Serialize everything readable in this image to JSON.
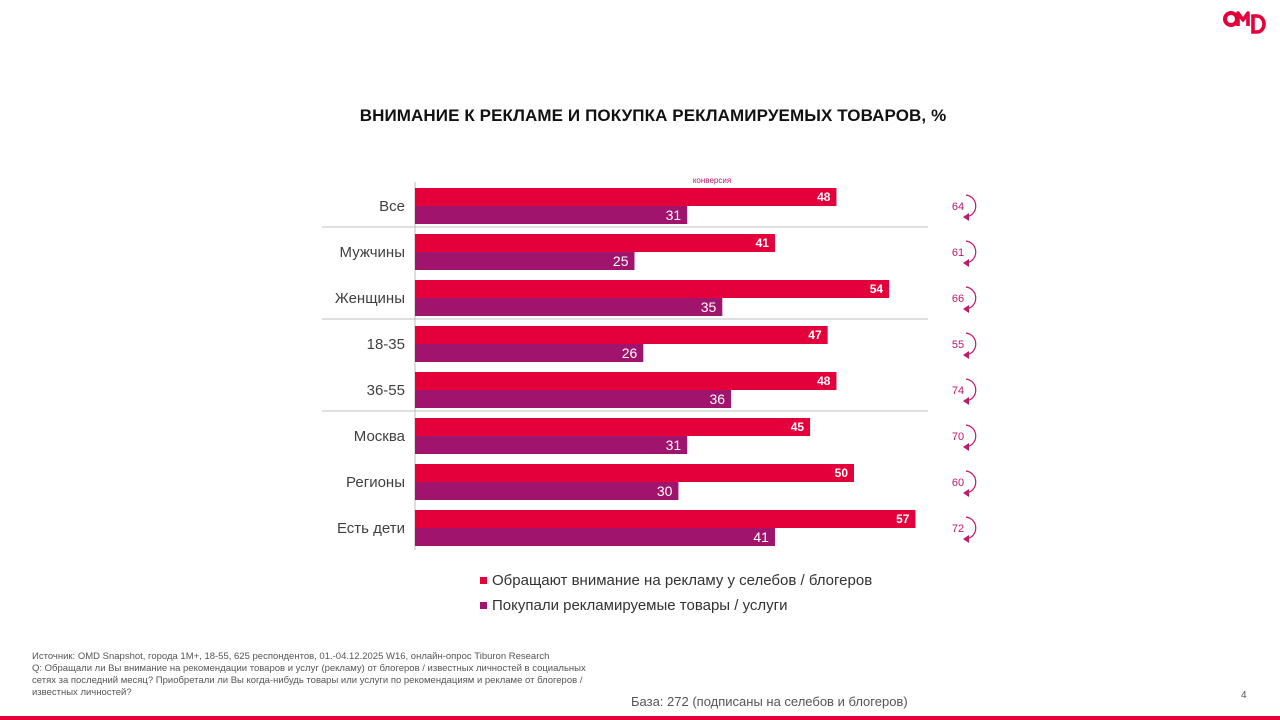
{
  "logo": {
    "text": "OMD",
    "name": "omd-logo"
  },
  "chart_data": {
    "type": "bar",
    "orientation": "horizontal",
    "title": "ВНИМАНИЕ К РЕКЛАМЕ И ПОКУПКА РЕКЛАМИРУЕМЫХ ТОВАРОВ, %",
    "categories": [
      "Все",
      "Мужчины",
      "Женщины",
      "18-35",
      "36-55",
      "Москва",
      "Регионы",
      "Есть дети"
    ],
    "series": [
      {
        "name": "Обращают внимание на рекламу у селебов / блогеров",
        "color": "#e4003a",
        "values": [
          48,
          41,
          54,
          47,
          48,
          45,
          50,
          57
        ]
      },
      {
        "name": "Покупали рекламируемые товары / услуги",
        "color": "#a0146e",
        "values": [
          31,
          25,
          35,
          26,
          36,
          31,
          30,
          41
        ]
      }
    ],
    "conversion": {
      "label": "конверсия",
      "values": [
        64,
        61,
        66,
        55,
        74,
        70,
        60,
        72
      ],
      "color": "#c0186a"
    },
    "xlim": [
      0,
      58
    ],
    "group_separators_after": [
      "Все",
      "Женщины",
      "36-55"
    ],
    "legend_position": "bottom"
  },
  "footer": {
    "source": "Источник: OMD Snapshot, города 1М+, 18-55, 625  респондентов, 01.-04.12.2025 W16, онлайн-опрос Tiburon Research",
    "question": "Q: Обращали ли Вы внимание на рекомендации товаров и услуг (рекламу) от блогеров / известных личностей в социальных сетях за последний месяц? Приобретали ли Вы когда-нибудь товары или услуги по рекомендациям и рекламе от блогеров / известных личностей?",
    "base": "База: 272 (подписаны на селебов и блогеров)",
    "page_number": "4"
  },
  "colors": {
    "accent": "#e4003a",
    "secondary": "#a0146e"
  }
}
